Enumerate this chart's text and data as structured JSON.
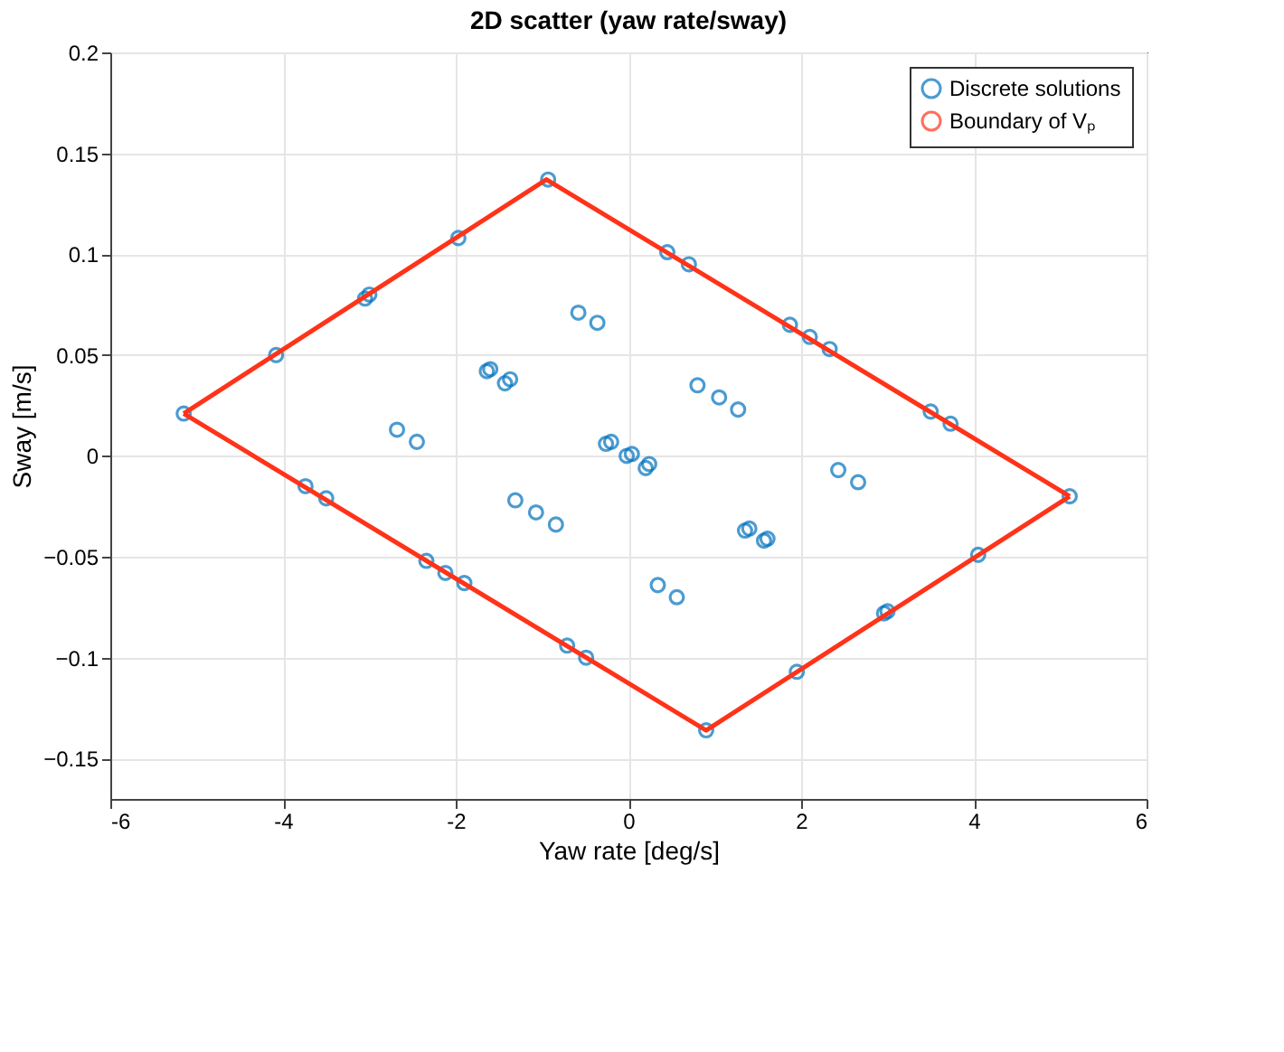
{
  "chart_data": {
    "type": "scatter",
    "title": "2D scatter (yaw rate/sway)",
    "xlabel": "Yaw rate [deg/s]",
    "ylabel": "Sway [m/s]",
    "xlim": [
      -6,
      6
    ],
    "xticks": [
      -6,
      -4,
      -2,
      0,
      2,
      4,
      6
    ],
    "ylim": [
      -0.17,
      0.2
    ],
    "yticks": [
      -0.15,
      -0.1,
      -0.05,
      0,
      0.05,
      0.1,
      0.15,
      0.2
    ],
    "grid": true,
    "legend": "top right",
    "series": [
      {
        "name": "Discrete solutions",
        "type": "scatter",
        "color": "#0072bd",
        "marker": "circle",
        "x": [
          -5.15,
          -4.08,
          -3.05,
          -3.0,
          -1.97,
          -0.93,
          0.45,
          0.7,
          1.87,
          2.1,
          2.33,
          3.5,
          3.73,
          5.11,
          4.05,
          2.96,
          3.0,
          1.95,
          0.9,
          -3.74,
          -3.5,
          -2.34,
          -2.12,
          -1.9,
          -0.71,
          -0.49,
          -2.68,
          -2.45,
          -1.64,
          -1.6,
          -1.43,
          -1.37,
          -0.58,
          -0.36,
          -0.26,
          -0.2,
          -0.02,
          0.04,
          0.2,
          0.24,
          0.8,
          1.05,
          1.27,
          -1.31,
          -1.07,
          -0.84,
          0.34,
          0.56,
          1.35,
          1.4,
          1.57,
          1.61,
          2.43,
          2.66
        ],
        "values": [
          0.021,
          0.05,
          0.078,
          0.08,
          0.108,
          0.137,
          0.101,
          0.095,
          0.065,
          0.059,
          0.053,
          0.022,
          0.016,
          -0.02,
          -0.049,
          -0.078,
          -0.077,
          -0.107,
          -0.136,
          -0.015,
          -0.021,
          -0.052,
          -0.058,
          -0.063,
          -0.094,
          -0.1,
          0.013,
          0.007,
          0.042,
          0.043,
          0.036,
          0.038,
          0.071,
          0.066,
          0.006,
          0.007,
          0.0,
          0.001,
          -0.006,
          -0.004,
          0.035,
          0.029,
          0.023,
          -0.022,
          -0.028,
          -0.034,
          -0.064,
          -0.07,
          -0.037,
          -0.036,
          -0.042,
          -0.041,
          -0.007,
          -0.013
        ]
      },
      {
        "name": "Boundary of Vₚ",
        "type": "line",
        "color": "#ff3319",
        "line_style": "solid",
        "marker": "none",
        "x": [
          -5.15,
          -0.95,
          5.11
        ],
        "values": [
          0.021,
          0.137,
          -0.02
        ]
      },
      {
        "type": "line",
        "color": "#ff3319",
        "line_style": "solid",
        "marker": "none",
        "x": [
          -5.15,
          0.9,
          5.11
        ],
        "values": [
          0.021,
          -0.136,
          -0.02
        ]
      }
    ]
  }
}
